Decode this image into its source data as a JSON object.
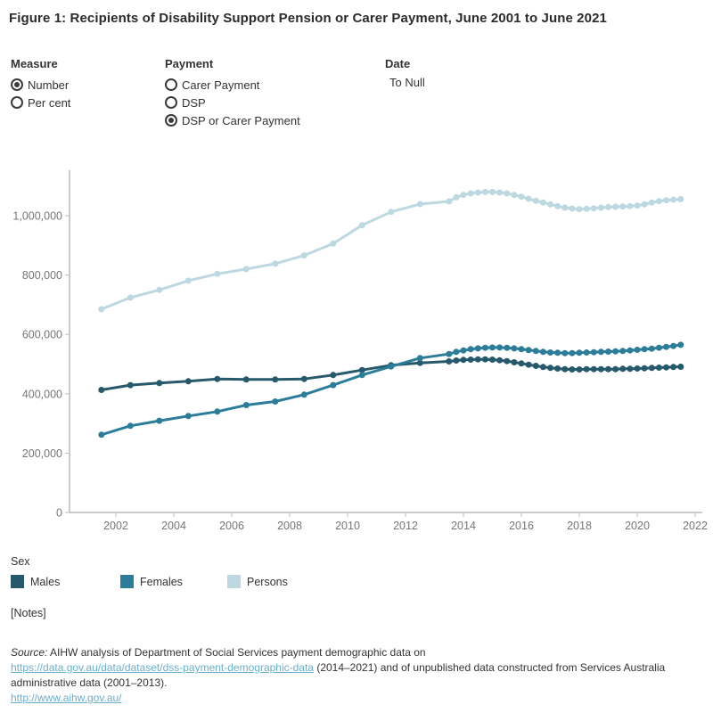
{
  "title": "Figure 1: Recipients of Disability Support Pension or Carer Payment, June 2001 to June 2021",
  "controls": {
    "measure": {
      "label": "Measure",
      "options": [
        {
          "label": "Number",
          "selected": true
        },
        {
          "label": "Per cent",
          "selected": false
        }
      ]
    },
    "payment": {
      "label": "Payment",
      "options": [
        {
          "label": "Carer Payment",
          "selected": false
        },
        {
          "label": "DSP",
          "selected": false
        },
        {
          "label": "DSP or Carer Payment",
          "selected": true
        }
      ]
    },
    "date": {
      "label": "Date",
      "value": "To Null"
    }
  },
  "chart_data": {
    "type": "line",
    "legend_title": "Sex",
    "legend_position": "bottom-left",
    "grid": false,
    "x_range": [
      2001,
      2022.4
    ],
    "y_range": [
      0,
      1150000
    ],
    "x_ticks": [
      2002,
      2004,
      2006,
      2008,
      2010,
      2012,
      2014,
      2016,
      2018,
      2020,
      2022
    ],
    "y_ticks": [
      {
        "value": 0,
        "label": "0"
      },
      {
        "value": 200000,
        "label": "200,000"
      },
      {
        "value": 400000,
        "label": "400,000"
      },
      {
        "value": 600000,
        "label": "600,000"
      },
      {
        "value": 800000,
        "label": "800,000"
      },
      {
        "value": 1000000,
        "label": "1,000,000"
      }
    ],
    "x_note": "decimal years; June values = year + 0.5; annual 2001-2013 then quarterly 2014-2021",
    "x": [
      2001.5,
      2002.5,
      2003.5,
      2004.5,
      2005.5,
      2006.5,
      2007.5,
      2008.5,
      2009.5,
      2010.5,
      2011.5,
      2012.5,
      2013.5,
      2013.75,
      2014,
      2014.25,
      2014.5,
      2014.75,
      2015,
      2015.25,
      2015.5,
      2015.75,
      2016,
      2016.25,
      2016.5,
      2016.75,
      2017,
      2017.25,
      2017.5,
      2017.75,
      2018,
      2018.25,
      2018.5,
      2018.75,
      2019,
      2019.25,
      2019.5,
      2019.75,
      2020,
      2020.25,
      2020.5,
      2020.75,
      2021,
      2021.25,
      2021.5
    ],
    "series": [
      {
        "name": "Males",
        "color": "#26596c",
        "values": [
          413000,
          429000,
          436000,
          442000,
          450000,
          448000,
          448000,
          450000,
          463000,
          480000,
          496000,
          504000,
          509000,
          512000,
          514000,
          515000,
          516000,
          516000,
          515000,
          513000,
          510000,
          506000,
          502000,
          498000,
          494000,
          490000,
          487000,
          485000,
          483000,
          482000,
          482000,
          483000,
          483000,
          483000,
          483000,
          483000,
          484000,
          484000,
          485000,
          486000,
          487000,
          488000,
          489000,
          490000,
          491000
        ]
      },
      {
        "name": "Females",
        "color": "#2c7d99",
        "values": [
          262000,
          292000,
          309000,
          325000,
          340000,
          362000,
          374000,
          397000,
          429000,
          463000,
          492000,
          520000,
          534000,
          541000,
          546000,
          550000,
          553000,
          555000,
          556000,
          556000,
          555000,
          553000,
          550000,
          547000,
          544000,
          541000,
          539000,
          538000,
          537000,
          537000,
          538000,
          539000,
          540000,
          541000,
          542000,
          543000,
          544000,
          546000,
          548000,
          550000,
          552000,
          555000,
          558000,
          561000,
          565000
        ]
      },
      {
        "name": "Persons",
        "color": "#bcd8e1",
        "values": [
          685000,
          724000,
          750000,
          781000,
          804000,
          820000,
          838000,
          866000,
          906000,
          968000,
          1013000,
          1039000,
          1048000,
          1062000,
          1070000,
          1075000,
          1078000,
          1080000,
          1080000,
          1078000,
          1075000,
          1070000,
          1064000,
          1057000,
          1050000,
          1044000,
          1038000,
          1032000,
          1027000,
          1024000,
          1022000,
          1023000,
          1025000,
          1027000,
          1029000,
          1030000,
          1031000,
          1032000,
          1034000,
          1038000,
          1044000,
          1049000,
          1052000,
          1054000,
          1056000
        ]
      }
    ]
  },
  "footer": {
    "notes": "[Notes]",
    "source_prefix": "Source:",
    "source_text1": " AIHW analysis of Department of Social Services payment demographic data on",
    "link1": "https://data.gov.au/data/dataset/dss-payment-demographic-data",
    "source_text2": " (2014–2021) and of unpublished data constructed from Services Australia",
    "source_text3": "administrative data (2001–2013).",
    "link2": "http://www.aihw.gov.au/"
  }
}
